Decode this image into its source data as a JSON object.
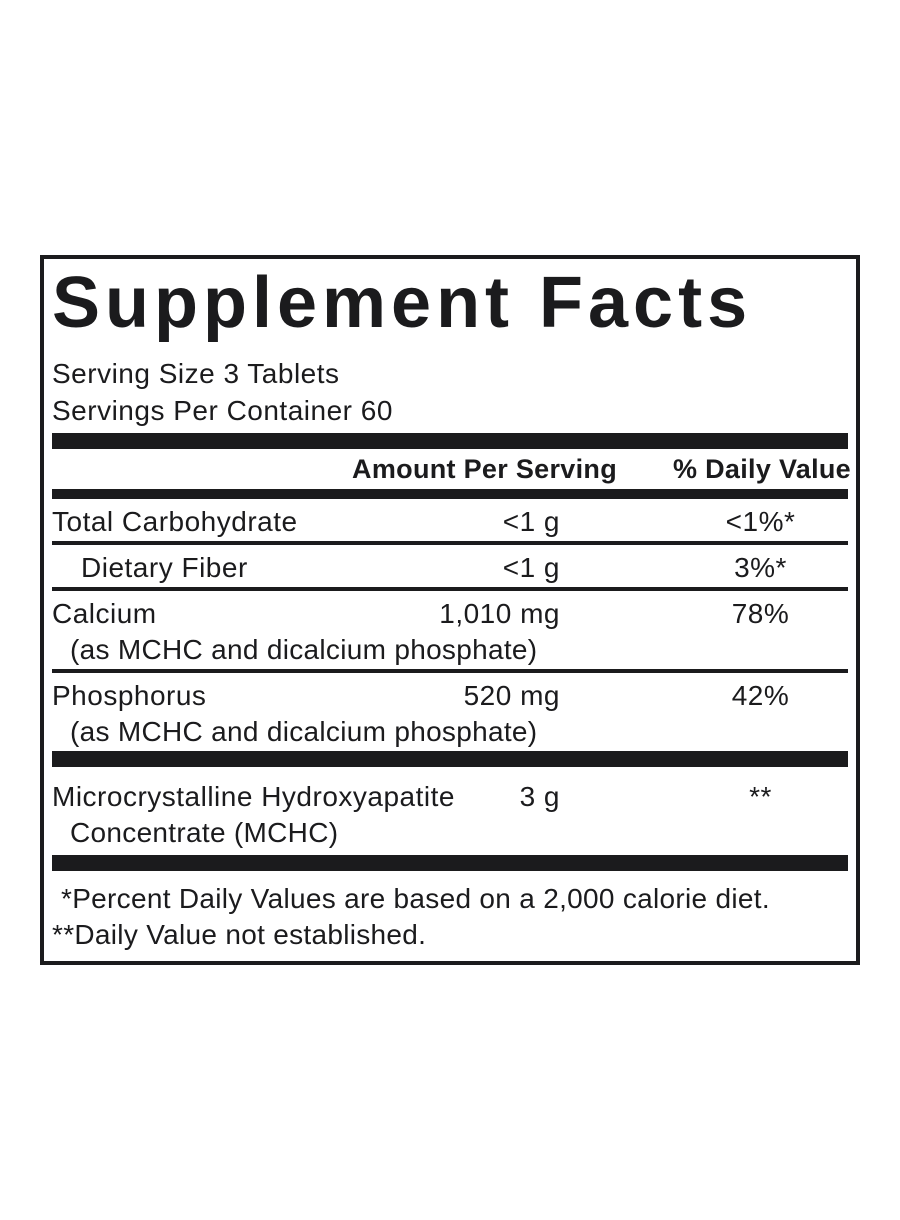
{
  "panel": {
    "title": "Supplement Facts",
    "serving_size": "Serving Size 3 Tablets",
    "servings_per_container": "Servings Per Container 60",
    "columns": {
      "amount": "Amount Per Serving",
      "daily_value": "% Daily Value"
    }
  },
  "nutrients": [
    {
      "name": "Total Carbohydrate",
      "sub": "",
      "amount": "<1 g",
      "daily_value": "<1%*",
      "indent": false,
      "divider_after": "thin"
    },
    {
      "name": "Dietary Fiber",
      "sub": "",
      "amount": "<1 g",
      "daily_value": "3%*",
      "indent": true,
      "divider_after": "thin"
    },
    {
      "name": "Calcium",
      "sub": "(as MCHC and dicalcium phosphate)",
      "amount": "1,010 mg",
      "daily_value": "78%",
      "indent": false,
      "divider_after": "thin"
    },
    {
      "name": "Phosphorus",
      "sub": "(as MCHC and dicalcium phosphate)",
      "amount": "520 mg",
      "daily_value": "42%",
      "indent": false,
      "divider_after": "thick"
    },
    {
      "name": "Microcrystalline Hydroxyapatite",
      "sub": "Concentrate (MCHC)",
      "amount": "3 g",
      "daily_value": "**",
      "indent": false,
      "divider_after": "thick"
    }
  ],
  "footnotes": [
    "*Percent Daily Values are based on a 2,000 calorie diet.",
    "**Daily Value not established."
  ],
  "colors": {
    "ink": "#1b1b1d",
    "background": "#ffffff"
  }
}
